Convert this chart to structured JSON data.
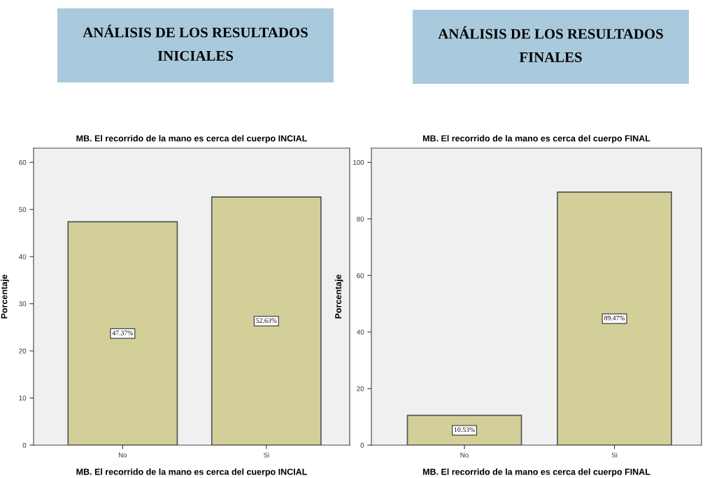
{
  "chart_data": [
    {
      "type": "bar",
      "title": "ANÁLISIS DE LOS RESULTADOS\nINICIALES",
      "subtitle": "MB. El recorrido de la mano es cerca del cuerpo INCIAL",
      "xlabel": "MB. El recorrido de la mano es cerca del cuerpo INCIAL",
      "ylabel": "Porcentaje",
      "categories": [
        "No",
        "Si"
      ],
      "values": [
        47.37,
        52.63
      ],
      "value_labels": [
        "47.37%",
        "52.63%"
      ],
      "color": "#d3cf98",
      "ylim": [
        0,
        63
      ],
      "yticks": [
        0,
        10,
        20,
        30,
        40,
        50,
        60
      ],
      "grid": false,
      "legend": false
    },
    {
      "type": "bar",
      "title": "ANÁLISIS DE LOS RESULTADOS\nFINALES",
      "subtitle": "MB. El recorrido de la mano es cerca del cuerpo FINAL",
      "xlabel": "MB. El recorrido de la mano es cerca del cuerpo FINAL",
      "ylabel": "Porcentaje",
      "categories": [
        "No",
        "Si"
      ],
      "values": [
        10.53,
        89.47
      ],
      "value_labels": [
        "10.53%",
        "89.47%"
      ],
      "color": "#d3cf98",
      "ylim": [
        0,
        105
      ],
      "yticks": [
        0,
        20,
        40,
        60,
        80,
        100
      ],
      "grid": false,
      "legend": false
    }
  ]
}
